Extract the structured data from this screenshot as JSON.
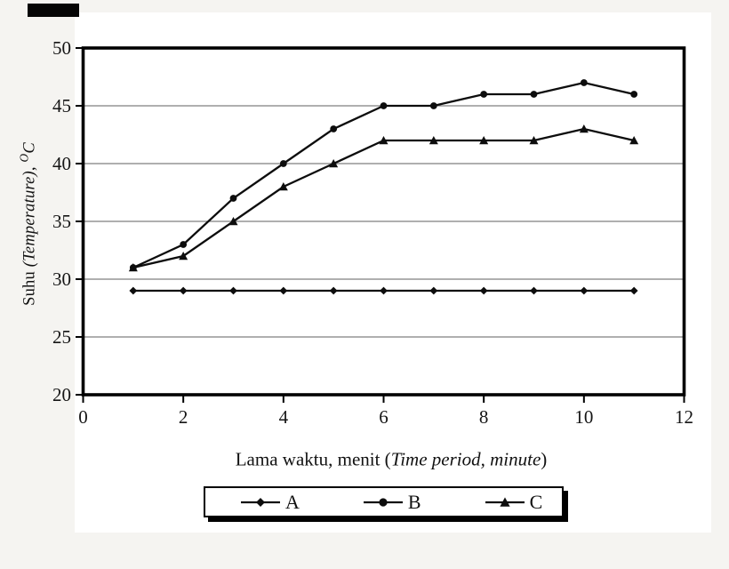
{
  "figure": {
    "background": "#f5f4f1",
    "plot_background": "#ffffff",
    "line_color": "#0d0d0d",
    "grid_color": "#7f7f7f",
    "frame_color": "#000000",
    "tick_label_color": "#151515"
  },
  "chart_data": {
    "type": "line",
    "title": "",
    "x": [
      1,
      2,
      3,
      4,
      5,
      6,
      7,
      8,
      9,
      10,
      11
    ],
    "series": [
      {
        "name": "A",
        "marker": "diamond",
        "values": [
          29,
          29,
          29,
          29,
          29,
          29,
          29,
          29,
          29,
          29,
          29
        ]
      },
      {
        "name": "B",
        "marker": "circle",
        "values": [
          31,
          33,
          37,
          40,
          43,
          45,
          45,
          46,
          46,
          47,
          46
        ]
      },
      {
        "name": "C",
        "marker": "triangle",
        "values": [
          31,
          32,
          35,
          38,
          40,
          42,
          42,
          42,
          42,
          43,
          42
        ]
      }
    ],
    "xlim": [
      0,
      12
    ],
    "ylim": [
      20,
      50
    ],
    "x_ticks": [
      0,
      2,
      4,
      6,
      8,
      10,
      12
    ],
    "y_ticks": [
      20,
      25,
      30,
      35,
      40,
      45,
      50
    ],
    "grid_y": [
      25,
      30,
      35,
      40,
      45
    ],
    "grid": "horizontal-only",
    "legend_position": "bottom",
    "xlabel": {
      "text": "Lama waktu, menit (Time period, minute)",
      "prefix": "Lama waktu, menit (",
      "italic": "Time period, minute",
      "suffix": ")"
    },
    "ylabel": {
      "text": "Suhu (Temperature), °C",
      "prefix": "Suhu ",
      "italic": "(Temperature)",
      "separator": ", ",
      "sup": "O",
      "unit": "C"
    }
  },
  "legend": {
    "items": [
      {
        "label": "A",
        "marker": "diamond"
      },
      {
        "label": "B",
        "marker": "circle"
      },
      {
        "label": "C",
        "marker": "triangle"
      }
    ]
  }
}
